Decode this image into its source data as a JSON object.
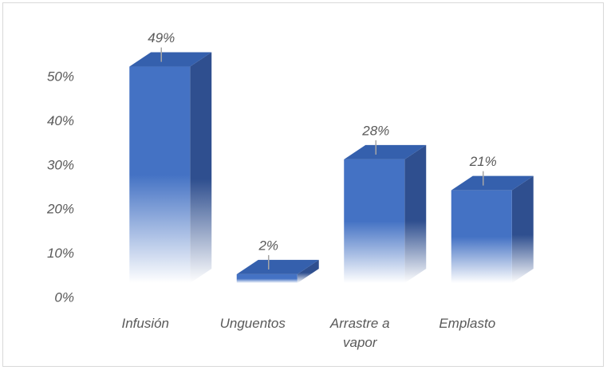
{
  "chart_data": {
    "type": "bar3d",
    "categories": [
      "Infusión",
      "Unguentos",
      "Arrastre a vapor",
      "Emplasto"
    ],
    "values": [
      49,
      2,
      28,
      21
    ],
    "value_labels": [
      "49%",
      "2%",
      "28%",
      "21%"
    ],
    "color": "#4472c4",
    "ylim": [
      0,
      50
    ],
    "yticks": [
      {
        "value": 0,
        "label": "0%"
      },
      {
        "value": 10,
        "label": "10%"
      },
      {
        "value": 20,
        "label": "20%"
      },
      {
        "value": 30,
        "label": "30%"
      },
      {
        "value": 40,
        "label": "40%"
      },
      {
        "value": 50,
        "label": "50%"
      }
    ],
    "grid": false
  }
}
